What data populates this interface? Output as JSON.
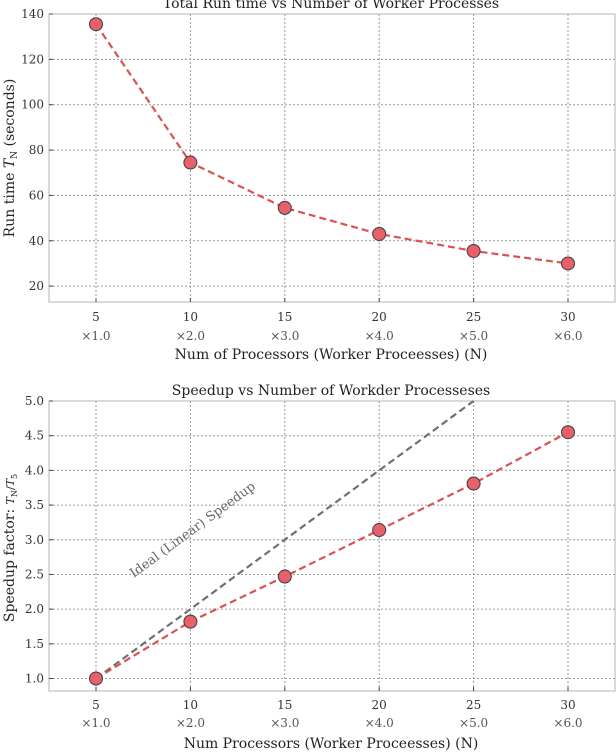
{
  "chart_data": [
    {
      "type": "line",
      "title": "Total Run time vs Number of Worker Processes",
      "xlabel": "Num of Processors (Worker Proceesses) (N)",
      "ylabel": "Run time T_N (seconds)",
      "x": [
        5,
        10,
        15,
        20,
        25,
        30
      ],
      "x_tick_labels": [
        "5",
        "10",
        "15",
        "20",
        "25",
        "30"
      ],
      "x_tick_sublabels": [
        "×1.0",
        "×2.0",
        "×3.0",
        "×4.0",
        "×5.0",
        "×6.0"
      ],
      "y_ticks": [
        20,
        40,
        60,
        80,
        100,
        120,
        140
      ],
      "xlim": [
        2.5,
        32.5
      ],
      "ylim": [
        13,
        140
      ],
      "grid": true,
      "series": [
        {
          "values": [
            135.5,
            74.5,
            54.5,
            43,
            35.5,
            30
          ],
          "color": "#d9534f",
          "marker_fill": "#e8606a",
          "line_style": "dashed"
        }
      ]
    },
    {
      "type": "line",
      "title": "Speedup vs Number of Workder Processeses",
      "xlabel": "Num Processors (Worker Proceesses) (N)",
      "ylabel": "Speedup factor: T_N/T_5",
      "x": [
        5,
        10,
        15,
        20,
        25,
        30
      ],
      "x_tick_labels": [
        "5",
        "10",
        "15",
        "20",
        "25",
        "30"
      ],
      "x_tick_sublabels": [
        "×1.0",
        "×2.0",
        "×3.0",
        "×4.0",
        "×5.0",
        "×6.0"
      ],
      "y_ticks": [
        1.0,
        1.5,
        2.0,
        2.5,
        3.0,
        3.5,
        4.0,
        4.5,
        5.0
      ],
      "y_tick_labels": [
        "1.0",
        "1.5",
        "2.0",
        "2.5",
        "3.0",
        "3.5",
        "4.0",
        "4.5",
        "5.0"
      ],
      "xlim": [
        2.5,
        32.5
      ],
      "ylim": [
        0.82,
        5.0
      ],
      "grid": true,
      "series": [
        {
          "values": [
            1.0,
            1.82,
            2.47,
            3.14,
            3.81,
            4.55
          ],
          "color": "#d9534f",
          "marker_fill": "#e8606a",
          "line_style": "dashed"
        }
      ],
      "ideal_line": {
        "label": "Ideal (Linear) Speedup",
        "x": [
          5,
          10,
          15,
          20,
          25
        ],
        "values": [
          1.0,
          2.0,
          3.0,
          4.0,
          5.0
        ],
        "color": "#707070",
        "line_style": "dashed"
      }
    }
  ]
}
